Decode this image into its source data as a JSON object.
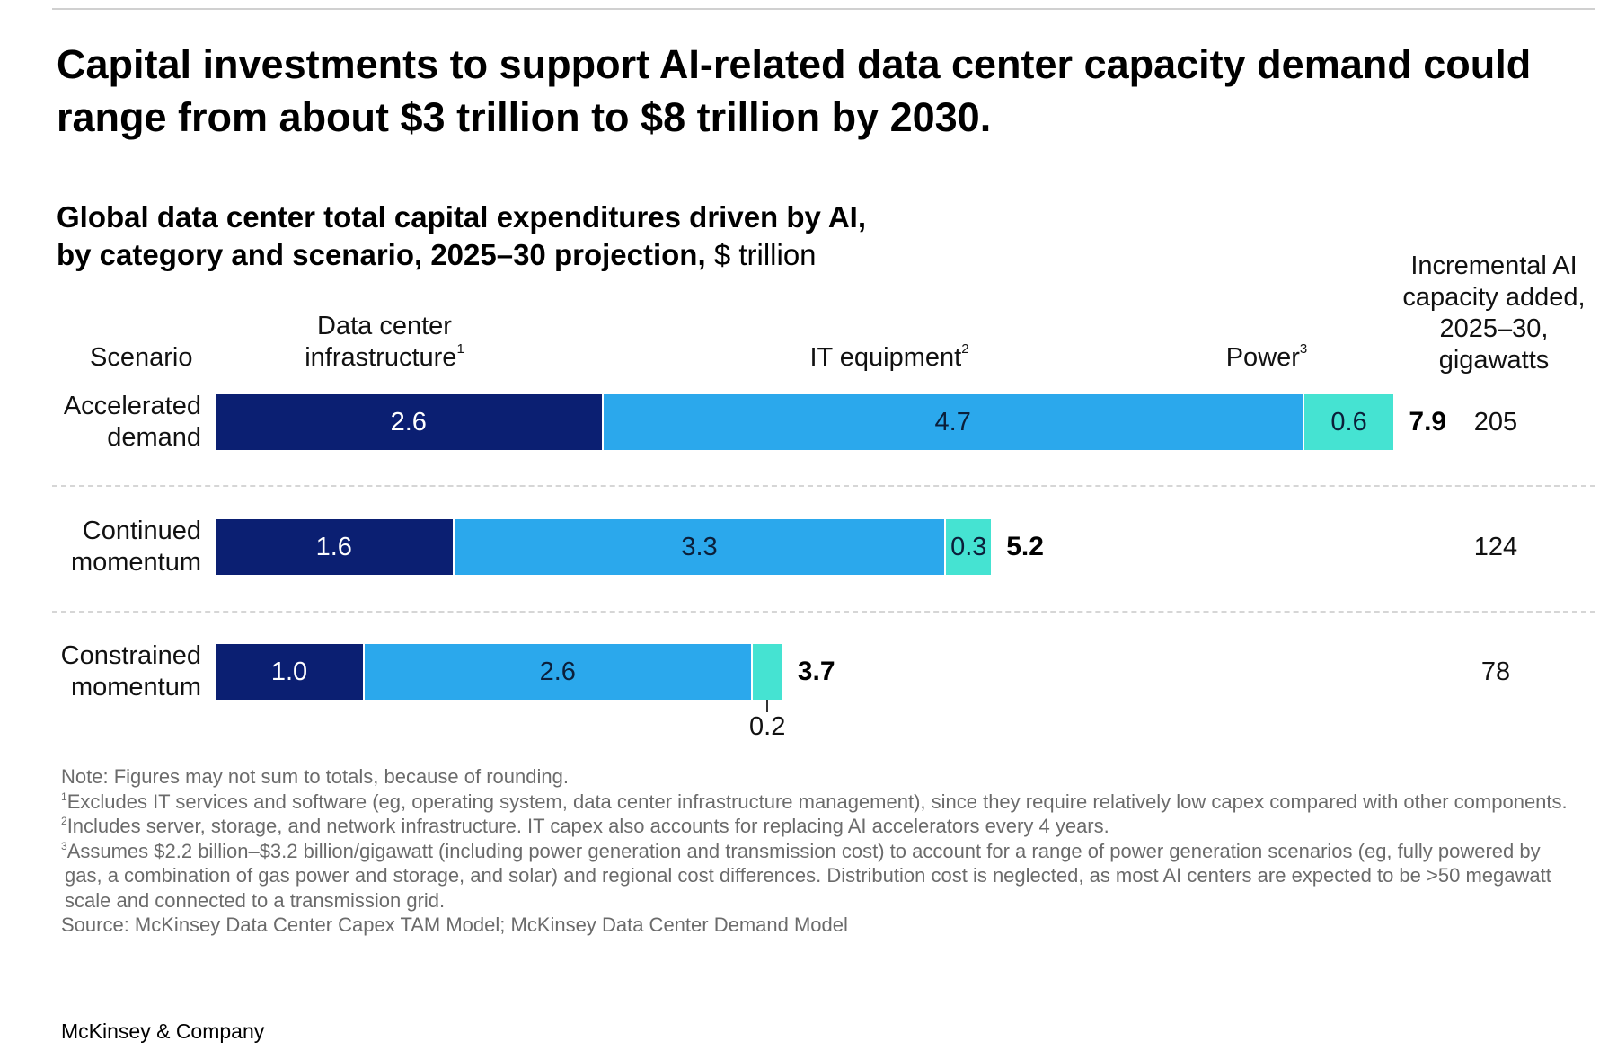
{
  "headline": "Capital investments to support AI-related data center capacity demand could range from about $3 trillion to $8 trillion by 2030.",
  "subtitle": {
    "line1": "Global data center total capital expenditures driven by AI,",
    "line2": "by category and scenario, 2025–30 projection,",
    "unit": "$ trillion"
  },
  "headers": {
    "scenario": "Scenario",
    "data_center_line1": "Data center",
    "data_center_line2": "infrastructure",
    "data_center_sup": "1",
    "it": "IT equipment",
    "it_sup": "2",
    "power": "Power",
    "power_sup": "3",
    "capacity_line1": "Incremental AI",
    "capacity_line2": "capacity added,",
    "capacity_line3": "2025–30,",
    "capacity_line4": "gigawatts"
  },
  "chart_data": {
    "type": "bar",
    "orientation": "horizontal",
    "stacked": true,
    "categories": [
      "Accelerated demand",
      "Continued momentum",
      "Constrained momentum"
    ],
    "category_lines": [
      [
        "Accelerated",
        "demand"
      ],
      [
        "Continued",
        "momentum"
      ],
      [
        "Constrained",
        "momentum"
      ]
    ],
    "series": [
      {
        "name": "Data center infrastructure",
        "color": "#0b1f72",
        "values": [
          2.6,
          1.6,
          1.0
        ],
        "labels": [
          "2.6",
          "1.6",
          "1.0"
        ]
      },
      {
        "name": "IT equipment",
        "color": "#2ba8ec",
        "values": [
          4.7,
          3.3,
          2.6
        ],
        "labels": [
          "4.7",
          "3.3",
          "2.6"
        ]
      },
      {
        "name": "Power",
        "color": "#45e3d2",
        "values": [
          0.6,
          0.3,
          0.2
        ],
        "labels": [
          "0.6",
          "0.3",
          "0.2"
        ]
      }
    ],
    "totals": [
      "7.9",
      "5.2",
      "3.7"
    ],
    "capacity_gw": [
      "205",
      "124",
      "78"
    ],
    "unit": "$ trillion"
  },
  "notes": {
    "note": "Note: Figures may not sum to totals, because of rounding.",
    "fn1_mark": "1",
    "fn1": "Excludes IT services and software (eg, operating system, data center infrastructure management), since they require relatively low capex compared with other components.",
    "fn2_mark": "2",
    "fn2": "Includes server, storage, and network infrastructure. IT capex also accounts for replacing AI accelerators every 4 years.",
    "fn3_mark": "3",
    "fn3": "Assumes $2.2 billion–$3.2 billion/gigawatt (including power generation and transmission cost) to account for a range of power generation scenarios (eg, fully powered by gas, a combination of gas power and storage, and solar) and regional cost differences. Distribution cost is neglected, as most AI centers are expected to be >50 megawatt scale and connected to a transmission grid.",
    "source": "Source: McKinsey Data Center Capex TAM Model; McKinsey Data Center Demand Model"
  },
  "brand": "McKinsey & Company"
}
